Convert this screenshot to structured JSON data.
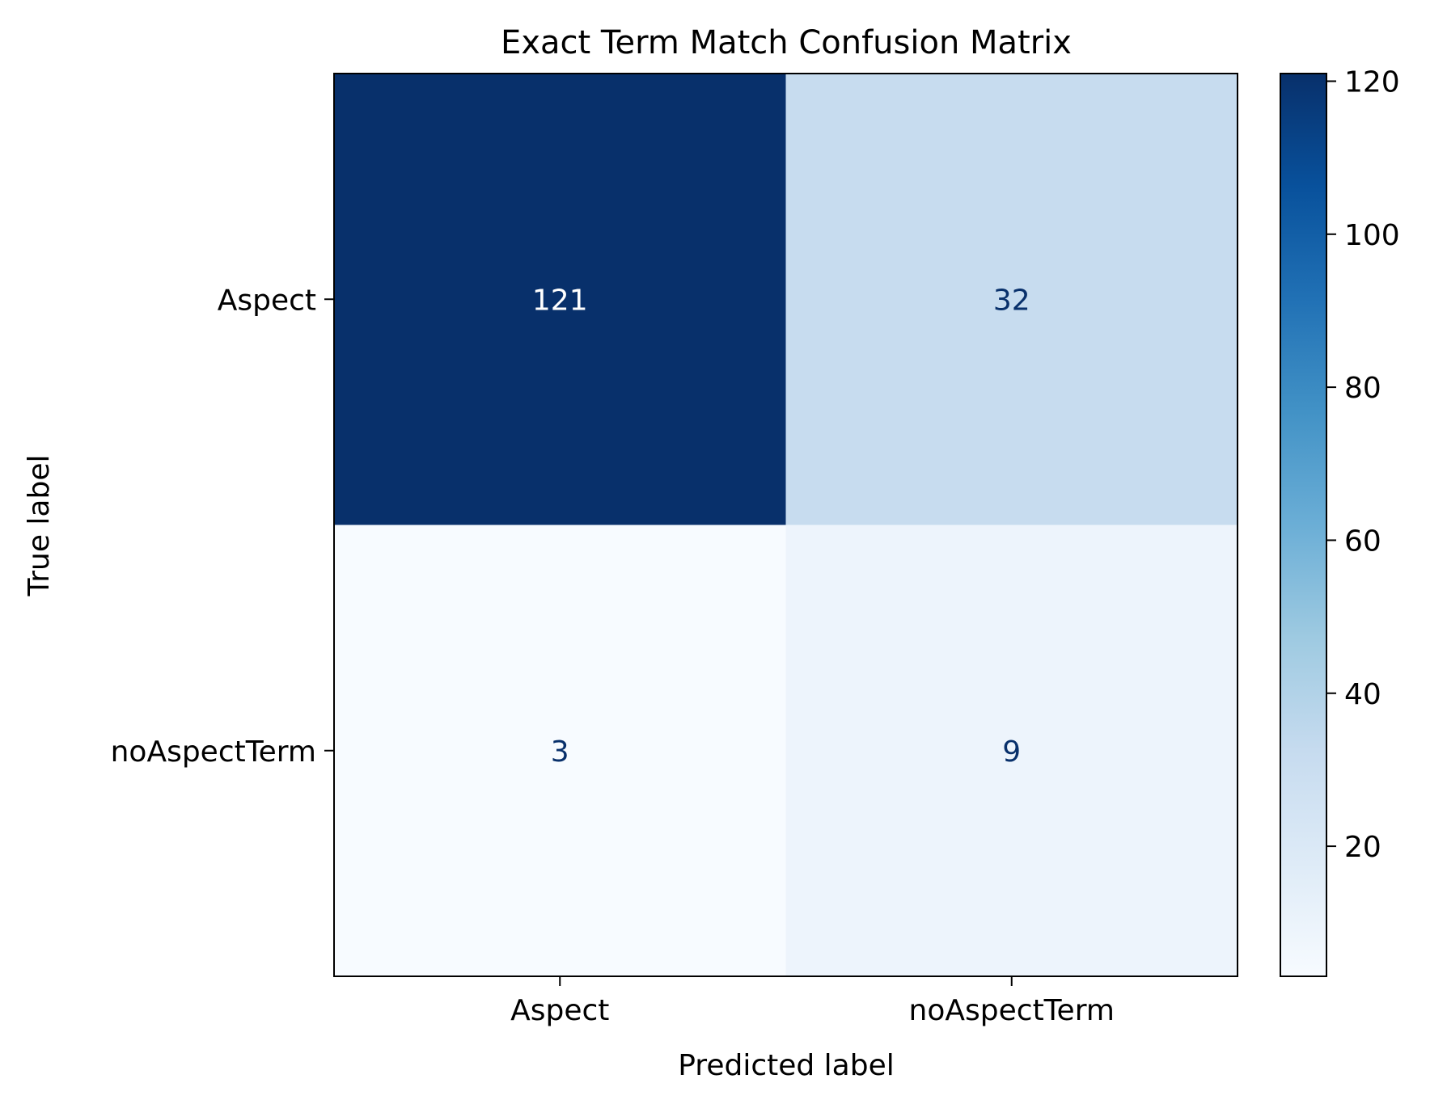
{
  "chart_data": {
    "type": "heatmap",
    "title": "Exact Term Match Confusion Matrix",
    "xlabel": "Predicted label",
    "ylabel": "True label",
    "x_categories": [
      "Aspect",
      "noAspectTerm"
    ],
    "y_categories": [
      "Aspect",
      "noAspectTerm"
    ],
    "matrix": [
      [
        121,
        32
      ],
      [
        3,
        9
      ]
    ],
    "colormap": "Blues",
    "colorbar": {
      "min": 3,
      "max": 121,
      "ticks": [
        20,
        40,
        60,
        80,
        100,
        120
      ]
    },
    "grid": false
  }
}
